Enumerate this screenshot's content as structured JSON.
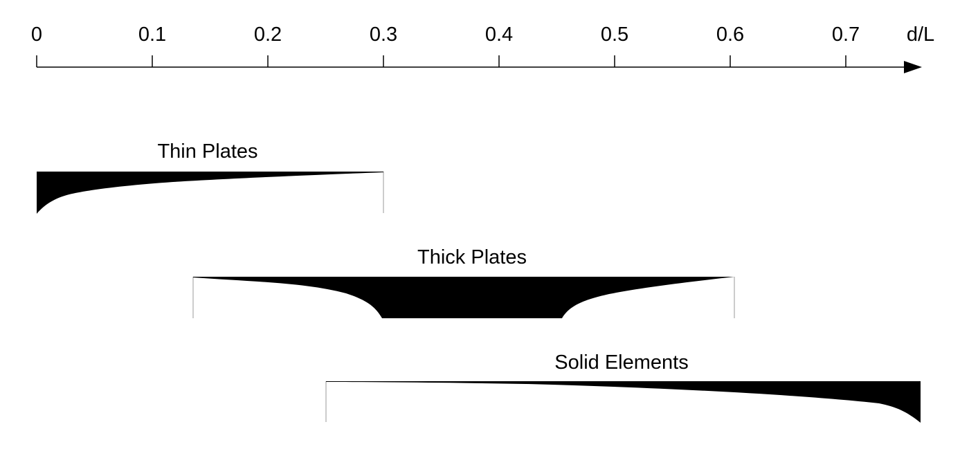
{
  "axis": {
    "label": "d/L",
    "ticks": [
      "0",
      "0.1",
      "0.2",
      "0.3",
      "0.4",
      "0.5",
      "0.6",
      "0.7"
    ]
  },
  "bands": [
    {
      "label": "Thin Plates",
      "range": [
        0,
        0.3
      ]
    },
    {
      "label": "Thick Plates",
      "range": [
        0.135,
        0.605
      ]
    },
    {
      "label": "Solid Elements",
      "range": [
        0.25,
        0.765
      ]
    }
  ],
  "colors": {
    "fill": "#000000",
    "edge": "#bbbbbb",
    "axis": "#000000"
  }
}
